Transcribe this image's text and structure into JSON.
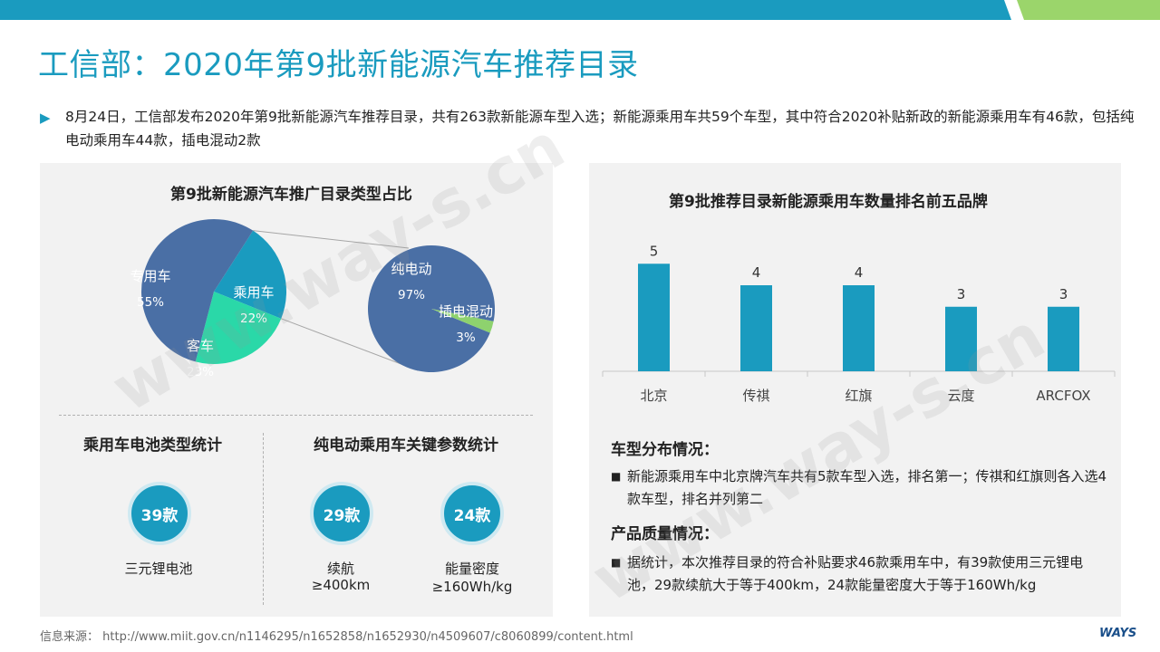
{
  "header": {
    "title": "工信部：2020年第9批新能源汽车推荐目录"
  },
  "intro": "8月24日，工信部发布2020年第9批新能源汽车推荐目录，共有263款新能源车型入选；新能源乘用车共59个车型，其中符合2020补贴新政的新能源乘用车有46款，包括纯电动乘用车44款，插电混动2款",
  "chart_data": [
    {
      "type": "pie",
      "title": "第9批新能源汽车推广目录类型占比",
      "slices": [
        {
          "label": "专用车",
          "value": 55,
          "display": "55%"
        },
        {
          "label": "乘用车",
          "value": 22,
          "display": "22%"
        },
        {
          "label": "客车",
          "value": 23,
          "display": "23%"
        }
      ],
      "sub_pie": {
        "parent": "乘用车",
        "slices": [
          {
            "label": "纯电动",
            "value": 97,
            "display": "97%"
          },
          {
            "label": "插电混动",
            "value": 3,
            "display": "3%"
          }
        ]
      }
    },
    {
      "type": "bar",
      "title": "第9批推荐目录新能源乘用车数量排名前五品牌",
      "categories": [
        "北京",
        "传祺",
        "红旗",
        "云度",
        "ARCFOX"
      ],
      "values": [
        5,
        4,
        4,
        3,
        3
      ],
      "ylim": [
        0,
        6
      ],
      "grid": false
    }
  ],
  "colors": {
    "accent": "#1a9bbf",
    "pie_main": "#4a6fa5",
    "pie_sky": "#1a9bbf",
    "pie_teal": "#2ad8a8",
    "pie_green": "#8ed26e",
    "bar": "#1a9bbf"
  },
  "stats": {
    "battery_title": "乘用车电池类型统计",
    "ev_title": "纯电动乘用车关键参数统计",
    "items": [
      {
        "value": "39款",
        "label1": "三元锂电池",
        "label2": ""
      },
      {
        "value": "29款",
        "label1": "续航",
        "label2": "≥400km"
      },
      {
        "value": "24款",
        "label1": "能量密度",
        "label2": "≥160Wh/kg"
      }
    ]
  },
  "notes": {
    "dist_head": "车型分布情况：",
    "dist_text": "新能源乘用车中北京牌汽车共有5款车型入选，排名第一；传祺和红旗则各入选4款车型，排名并列第二",
    "quality_head": "产品质量情况：",
    "quality_text": "据统计，本次推荐目录的符合补贴要求46款乘用车中，有39款使用三元锂电池，29款续航大于等于400km，24款能量密度大于等于160Wh/kg",
    "bullet": "■"
  },
  "footer": {
    "source": "信息来源： http://www.miit.gov.cn/n1146295/n1652858/n1652930/n4509607/c8060899/content.html",
    "logo": "WAYS",
    "watermark": "www.way-s.cn"
  }
}
